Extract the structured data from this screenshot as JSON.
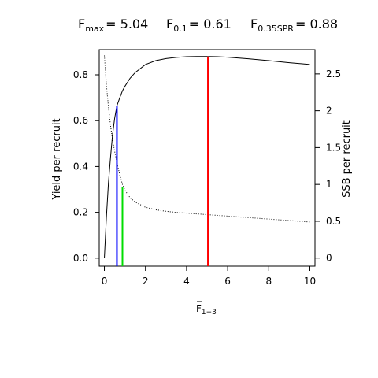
{
  "chart_data": {
    "type": "line",
    "title_parts": [
      {
        "base": "F",
        "sub": "max",
        "value": "= 5.04"
      },
      {
        "base": "F",
        "sub": "0.1",
        "value": "= 0.61"
      },
      {
        "base": "F",
        "sub": "0.35SPR",
        "value": "= 0.88"
      }
    ],
    "xlabel": {
      "base": "F",
      "sub": "1−3"
    },
    "ylabel": "Yield per recruit",
    "y2label": "SSB per recruit",
    "xlim": [
      -0.25,
      10.25
    ],
    "ylim": [
      -0.035,
      0.91
    ],
    "y2lim": [
      -0.11,
      2.83
    ],
    "xticks": [
      0,
      2,
      4,
      6,
      8,
      10
    ],
    "yticks": [
      0.0,
      0.2,
      0.4,
      0.6,
      0.8
    ],
    "y2ticks": [
      0,
      0.5,
      1,
      1.5,
      2,
      2.5
    ],
    "xtick_labels": [
      "0",
      "2",
      "4",
      "6",
      "8",
      "10"
    ],
    "ytick_labels": [
      "0.0",
      "0.2",
      "0.4",
      "0.6",
      "0.8"
    ],
    "y2tick_labels": [
      "0",
      "0.5",
      "1",
      "1.5",
      "2",
      "2.5"
    ],
    "series": [
      {
        "axis": "left",
        "style": "solid",
        "x": [
          0,
          0.1,
          0.2,
          0.3,
          0.4,
          0.5,
          0.61,
          0.75,
          0.88,
          1.0,
          1.25,
          1.5,
          2.0,
          2.5,
          3.0,
          3.5,
          4.0,
          4.5,
          5.04,
          5.5,
          6.0,
          7.0,
          8.0,
          9.0,
          10.0
        ],
        "y": [
          0.0,
          0.18,
          0.33,
          0.44,
          0.54,
          0.61,
          0.665,
          0.7,
          0.73,
          0.75,
          0.785,
          0.81,
          0.845,
          0.862,
          0.871,
          0.876,
          0.879,
          0.88,
          0.88,
          0.879,
          0.877,
          0.87,
          0.862,
          0.853,
          0.845
        ]
      },
      {
        "axis": "right",
        "style": "dotted",
        "x": [
          0,
          0.1,
          0.2,
          0.3,
          0.4,
          0.5,
          0.61,
          0.75,
          0.88,
          1.0,
          1.25,
          1.5,
          2.0,
          2.5,
          3.0,
          3.5,
          4.0,
          5.0,
          6.0,
          7.0,
          8.0,
          9.0,
          10.0
        ],
        "y": [
          2.75,
          2.35,
          2.05,
          1.8,
          1.6,
          1.45,
          1.3,
          1.13,
          1.0,
          0.92,
          0.82,
          0.76,
          0.69,
          0.655,
          0.635,
          0.62,
          0.61,
          0.59,
          0.57,
          0.55,
          0.53,
          0.51,
          0.49
        ]
      }
    ],
    "reference_lines": [
      {
        "x": 0.61,
        "y_top": 0.665,
        "color": "#0000ff"
      },
      {
        "x": 0.88,
        "y_top": 0.31,
        "color": "#00dd00"
      },
      {
        "x": 5.04,
        "y_top": 0.88,
        "color": "#ff0000"
      }
    ]
  }
}
